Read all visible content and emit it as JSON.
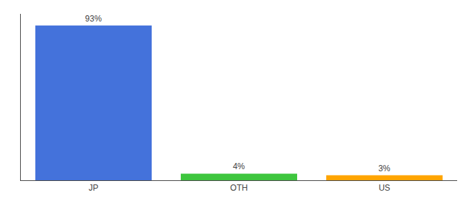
{
  "chart_data": {
    "type": "bar",
    "categories": [
      "JP",
      "OTH",
      "US"
    ],
    "values": [
      93,
      4,
      3
    ],
    "value_labels": [
      "93%",
      "4%",
      "3%"
    ],
    "data_labels": true,
    "colors": [
      "#4472db",
      "#3ec63e",
      "#ffa500"
    ],
    "ylim": [
      0,
      100
    ],
    "tick_labels": "x",
    "grid": false
  }
}
